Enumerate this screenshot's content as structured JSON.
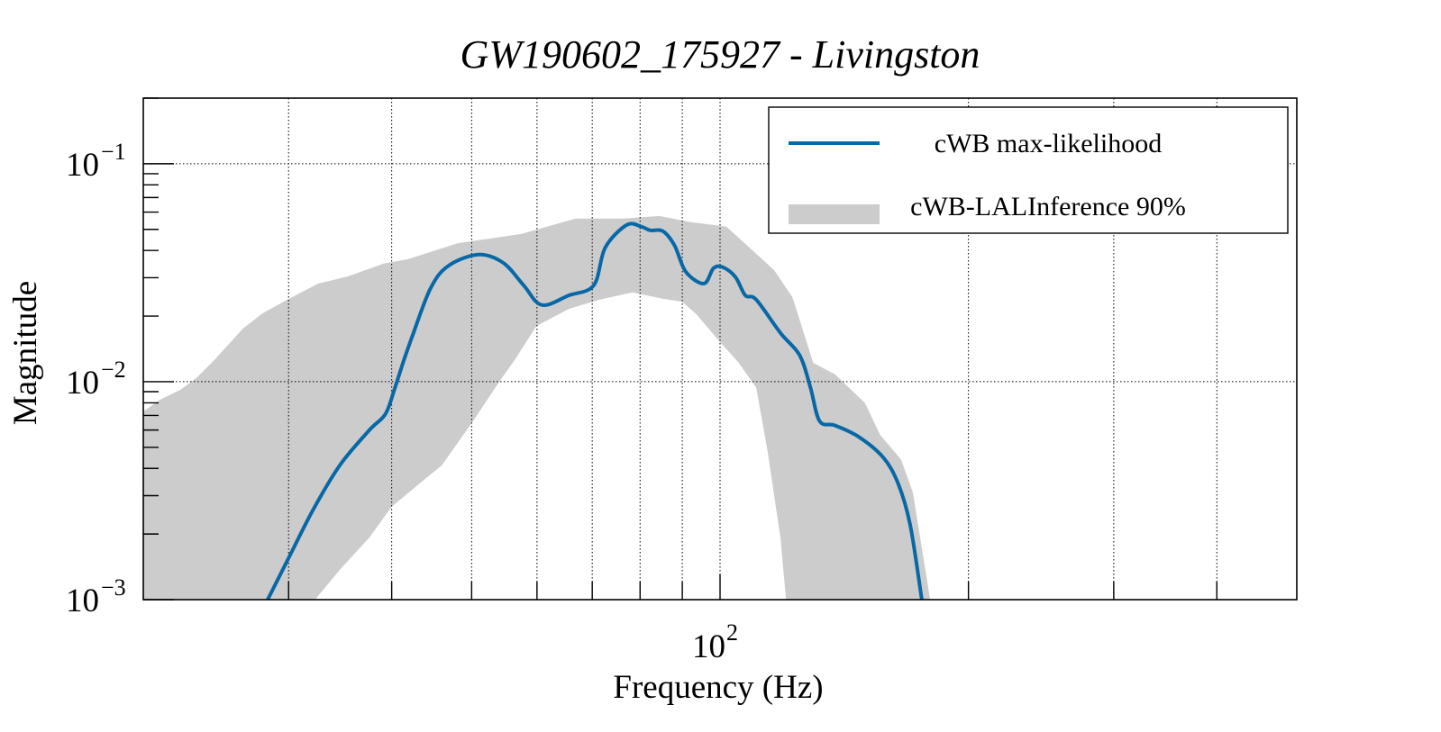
{
  "chart_data": {
    "type": "line",
    "title": "GW190602_175927 - Livingston",
    "xlabel": "Frequency (Hz)",
    "ylabel": "Magnitude",
    "xscale": "log",
    "yscale": "log",
    "xlim": [
      20,
      500
    ],
    "ylim": [
      0.001,
      0.2
    ],
    "grid": true,
    "x_major_ticks": [
      {
        "value": 100,
        "base": "10",
        "exp": "2"
      }
    ],
    "x_gridlines": [
      30,
      40,
      50,
      60,
      70,
      80,
      90,
      100,
      200,
      300,
      400
    ],
    "y_major_ticks": [
      {
        "value": 0.1,
        "base": "10",
        "exp": "−1"
      },
      {
        "value": 0.01,
        "base": "10",
        "exp": "−2"
      },
      {
        "value": 0.001,
        "base": "10",
        "exp": "−3"
      }
    ],
    "legend": {
      "placement": "top-right",
      "entries": [
        {
          "label": "cWB max-likelihood",
          "kind": "line"
        },
        {
          "label": "cWB-LALInference 90%",
          "kind": "band"
        }
      ]
    },
    "colors": {
      "line": "#0868a6",
      "band": "#cccccc"
    },
    "series": [
      {
        "name": "cWB max-likelihood",
        "type": "line",
        "points": [
          [
            28.3,
            0.001
          ],
          [
            30.0,
            0.00155
          ],
          [
            32.1,
            0.00257
          ],
          [
            34.6,
            0.00413
          ],
          [
            37.6,
            0.006
          ],
          [
            39.3,
            0.0071
          ],
          [
            40.3,
            0.0092
          ],
          [
            41.4,
            0.0126
          ],
          [
            42.4,
            0.0163
          ],
          [
            44.6,
            0.0269
          ],
          [
            46.9,
            0.0341
          ],
          [
            51.0,
            0.0383
          ],
          [
            54.6,
            0.0351
          ],
          [
            57.8,
            0.0277
          ],
          [
            60.8,
            0.0225
          ],
          [
            65.6,
            0.0249
          ],
          [
            70.3,
            0.0277
          ],
          [
            72.6,
            0.0413
          ],
          [
            77.1,
            0.0524
          ],
          [
            80.3,
            0.0514
          ],
          [
            82.3,
            0.0495
          ],
          [
            85.3,
            0.049
          ],
          [
            88.1,
            0.0421
          ],
          [
            90.9,
            0.0319
          ],
          [
            95.6,
            0.0282
          ],
          [
            98.2,
            0.0332
          ],
          [
            100.8,
            0.0335
          ],
          [
            104.4,
            0.0302
          ],
          [
            107.3,
            0.0249
          ],
          [
            110.6,
            0.0238
          ],
          [
            118.4,
            0.0167
          ],
          [
            124.9,
            0.0132
          ],
          [
            128.7,
            0.0094
          ],
          [
            132.0,
            0.0066
          ],
          [
            137.8,
            0.0063
          ],
          [
            147.1,
            0.0056
          ],
          [
            157.6,
            0.0045
          ],
          [
            164.4,
            0.0034
          ],
          [
            170.0,
            0.0022
          ],
          [
            175.6,
            0.001
          ]
        ]
      },
      {
        "name": "cWB-LALInference 90%",
        "type": "band",
        "upper": [
          [
            20.0,
            0.0073
          ],
          [
            21.0,
            0.0083
          ],
          [
            22.2,
            0.0092
          ],
          [
            23.2,
            0.0104
          ],
          [
            24.4,
            0.0126
          ],
          [
            26.4,
            0.0175
          ],
          [
            27.9,
            0.0206
          ],
          [
            29.9,
            0.0238
          ],
          [
            32.6,
            0.0282
          ],
          [
            35.4,
            0.0304
          ],
          [
            39.1,
            0.0348
          ],
          [
            41.9,
            0.0365
          ],
          [
            48.1,
            0.0432
          ],
          [
            57.4,
            0.0476
          ],
          [
            66.8,
            0.056
          ],
          [
            76.3,
            0.056
          ],
          [
            84.4,
            0.0576
          ],
          [
            92.0,
            0.054
          ],
          [
            101.8,
            0.0514
          ],
          [
            107.9,
            0.0421
          ],
          [
            116.3,
            0.0325
          ],
          [
            122.4,
            0.0244
          ],
          [
            129.7,
            0.0122
          ],
          [
            137.8,
            0.0108
          ],
          [
            149.8,
            0.008
          ],
          [
            156.3,
            0.0057
          ],
          [
            165.7,
            0.0044
          ],
          [
            171.3,
            0.0031
          ],
          [
            179.7,
            0.001
          ]
        ],
        "lower": [
          [
            20.0,
            0.001
          ],
          [
            32.3,
            0.001
          ],
          [
            34.6,
            0.00137
          ],
          [
            37.6,
            0.00193
          ],
          [
            40.0,
            0.00267
          ],
          [
            43.8,
            0.00355
          ],
          [
            46.0,
            0.00413
          ],
          [
            50.2,
            0.0066
          ],
          [
            54.1,
            0.0101
          ],
          [
            56.4,
            0.0126
          ],
          [
            59.9,
            0.018
          ],
          [
            65.6,
            0.0216
          ],
          [
            71.5,
            0.0238
          ],
          [
            78.3,
            0.0257
          ],
          [
            85.3,
            0.024
          ],
          [
            89.9,
            0.0233
          ],
          [
            93.4,
            0.0206
          ],
          [
            100.0,
            0.0152
          ],
          [
            105.2,
            0.0123
          ],
          [
            110.6,
            0.0094
          ],
          [
            114.3,
            0.0047
          ],
          [
            118.4,
            0.0019
          ],
          [
            120.2,
            0.001
          ],
          [
            179.7,
            0.001
          ]
        ]
      }
    ]
  }
}
